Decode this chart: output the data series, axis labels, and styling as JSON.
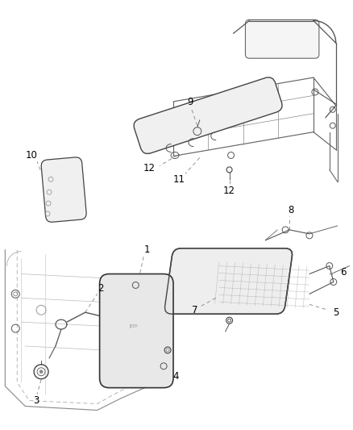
{
  "background_color": "#ffffff",
  "fig_width": 4.38,
  "fig_height": 5.33,
  "dpi": 100,
  "line_color": "#555555",
  "label_color": "#000000",
  "label_fontsize": 8.5
}
